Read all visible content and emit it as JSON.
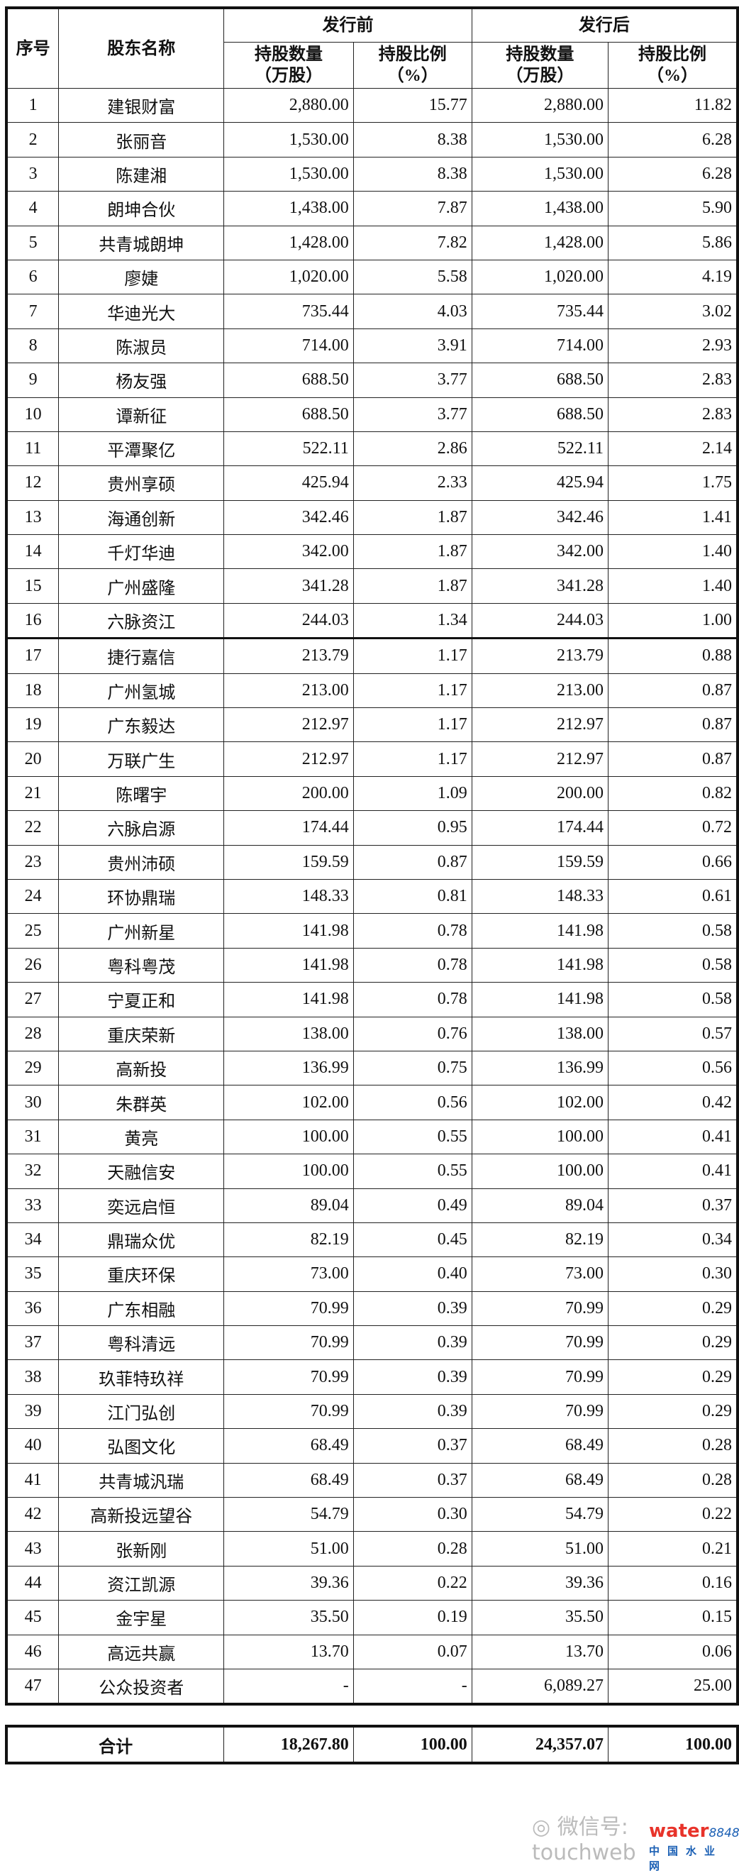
{
  "header": {
    "seq": "序号",
    "name": "股东名称",
    "before": "发行前",
    "after": "发行后",
    "qty": "持股数量",
    "qty_unit": "（万股）",
    "ratio": "持股比例",
    "ratio_unit": "（%）"
  },
  "rows": [
    [
      "1",
      "建银财富",
      "2,880.00",
      "15.77",
      "2,880.00",
      "11.82"
    ],
    [
      "2",
      "张丽音",
      "1,530.00",
      "8.38",
      "1,530.00",
      "6.28"
    ],
    [
      "3",
      "陈建湘",
      "1,530.00",
      "8.38",
      "1,530.00",
      "6.28"
    ],
    [
      "4",
      "朗坤合伙",
      "1,438.00",
      "7.87",
      "1,438.00",
      "5.90"
    ],
    [
      "5",
      "共青城朗坤",
      "1,428.00",
      "7.82",
      "1,428.00",
      "5.86"
    ],
    [
      "6",
      "廖婕",
      "1,020.00",
      "5.58",
      "1,020.00",
      "4.19"
    ],
    [
      "7",
      "华迪光大",
      "735.44",
      "4.03",
      "735.44",
      "3.02"
    ],
    [
      "8",
      "陈淑员",
      "714.00",
      "3.91",
      "714.00",
      "2.93"
    ],
    [
      "9",
      "杨友强",
      "688.50",
      "3.77",
      "688.50",
      "2.83"
    ],
    [
      "10",
      "谭新征",
      "688.50",
      "3.77",
      "688.50",
      "2.83"
    ],
    [
      "11",
      "平潭聚亿",
      "522.11",
      "2.86",
      "522.11",
      "2.14"
    ],
    [
      "12",
      "贵州享硕",
      "425.94",
      "2.33",
      "425.94",
      "1.75"
    ],
    [
      "13",
      "海通创新",
      "342.46",
      "1.87",
      "342.46",
      "1.41"
    ],
    [
      "14",
      "千灯华迪",
      "342.00",
      "1.87",
      "342.00",
      "1.40"
    ],
    [
      "15",
      "广州盛隆",
      "341.28",
      "1.87",
      "341.28",
      "1.40"
    ],
    [
      "16",
      "六脉资江",
      "244.03",
      "1.34",
      "244.03",
      "1.00"
    ],
    [
      "17",
      "捷行嘉信",
      "213.79",
      "1.17",
      "213.79",
      "0.88"
    ],
    [
      "18",
      "广州氢城",
      "213.00",
      "1.17",
      "213.00",
      "0.87"
    ],
    [
      "19",
      "广东毅达",
      "212.97",
      "1.17",
      "212.97",
      "0.87"
    ],
    [
      "20",
      "万联广生",
      "212.97",
      "1.17",
      "212.97",
      "0.87"
    ],
    [
      "21",
      "陈曙宇",
      "200.00",
      "1.09",
      "200.00",
      "0.82"
    ],
    [
      "22",
      "六脉启源",
      "174.44",
      "0.95",
      "174.44",
      "0.72"
    ],
    [
      "23",
      "贵州沛硕",
      "159.59",
      "0.87",
      "159.59",
      "0.66"
    ],
    [
      "24",
      "环协鼎瑞",
      "148.33",
      "0.81",
      "148.33",
      "0.61"
    ],
    [
      "25",
      "广州新星",
      "141.98",
      "0.78",
      "141.98",
      "0.58"
    ],
    [
      "26",
      "粤科粤茂",
      "141.98",
      "0.78",
      "141.98",
      "0.58"
    ],
    [
      "27",
      "宁夏正和",
      "141.98",
      "0.78",
      "141.98",
      "0.58"
    ],
    [
      "28",
      "重庆荣新",
      "138.00",
      "0.76",
      "138.00",
      "0.57"
    ],
    [
      "29",
      "高新投",
      "136.99",
      "0.75",
      "136.99",
      "0.56"
    ],
    [
      "30",
      "朱群英",
      "102.00",
      "0.56",
      "102.00",
      "0.42"
    ],
    [
      "31",
      "黄亮",
      "100.00",
      "0.55",
      "100.00",
      "0.41"
    ],
    [
      "32",
      "天融信安",
      "100.00",
      "0.55",
      "100.00",
      "0.41"
    ],
    [
      "33",
      "奕远启恒",
      "89.04",
      "0.49",
      "89.04",
      "0.37"
    ],
    [
      "34",
      "鼎瑞众优",
      "82.19",
      "0.45",
      "82.19",
      "0.34"
    ],
    [
      "35",
      "重庆环保",
      "73.00",
      "0.40",
      "73.00",
      "0.30"
    ],
    [
      "36",
      "广东相融",
      "70.99",
      "0.39",
      "70.99",
      "0.29"
    ],
    [
      "37",
      "粤科清远",
      "70.99",
      "0.39",
      "70.99",
      "0.29"
    ],
    [
      "38",
      "玖菲特玖祥",
      "70.99",
      "0.39",
      "70.99",
      "0.29"
    ],
    [
      "39",
      "江门弘创",
      "70.99",
      "0.39",
      "70.99",
      "0.29"
    ],
    [
      "40",
      "弘图文化",
      "68.49",
      "0.37",
      "68.49",
      "0.28"
    ],
    [
      "41",
      "共青城汎瑞",
      "68.49",
      "0.37",
      "68.49",
      "0.28"
    ],
    [
      "42",
      "高新投远望谷",
      "54.79",
      "0.30",
      "54.79",
      "0.22"
    ],
    [
      "43",
      "张新刚",
      "51.00",
      "0.28",
      "51.00",
      "0.21"
    ],
    [
      "44",
      "资江凯源",
      "39.36",
      "0.22",
      "39.36",
      "0.16"
    ],
    [
      "45",
      "金宇星",
      "35.50",
      "0.19",
      "35.50",
      "0.15"
    ],
    [
      "46",
      "高远共赢",
      "13.70",
      "0.07",
      "13.70",
      "0.06"
    ],
    [
      "47",
      "公众投资者",
      "-",
      "-",
      "6,089.27",
      "25.00"
    ]
  ],
  "total": {
    "label": "合计",
    "before_qty": "18,267.80",
    "before_ratio": "100.00",
    "after_qty": "24,357.07",
    "after_ratio": "100.00"
  },
  "watermark": {
    "wechat": "微信号: touchweb",
    "logo_brand": "water",
    "logo_num": "8848",
    "logo_cn": "中国水业网"
  }
}
